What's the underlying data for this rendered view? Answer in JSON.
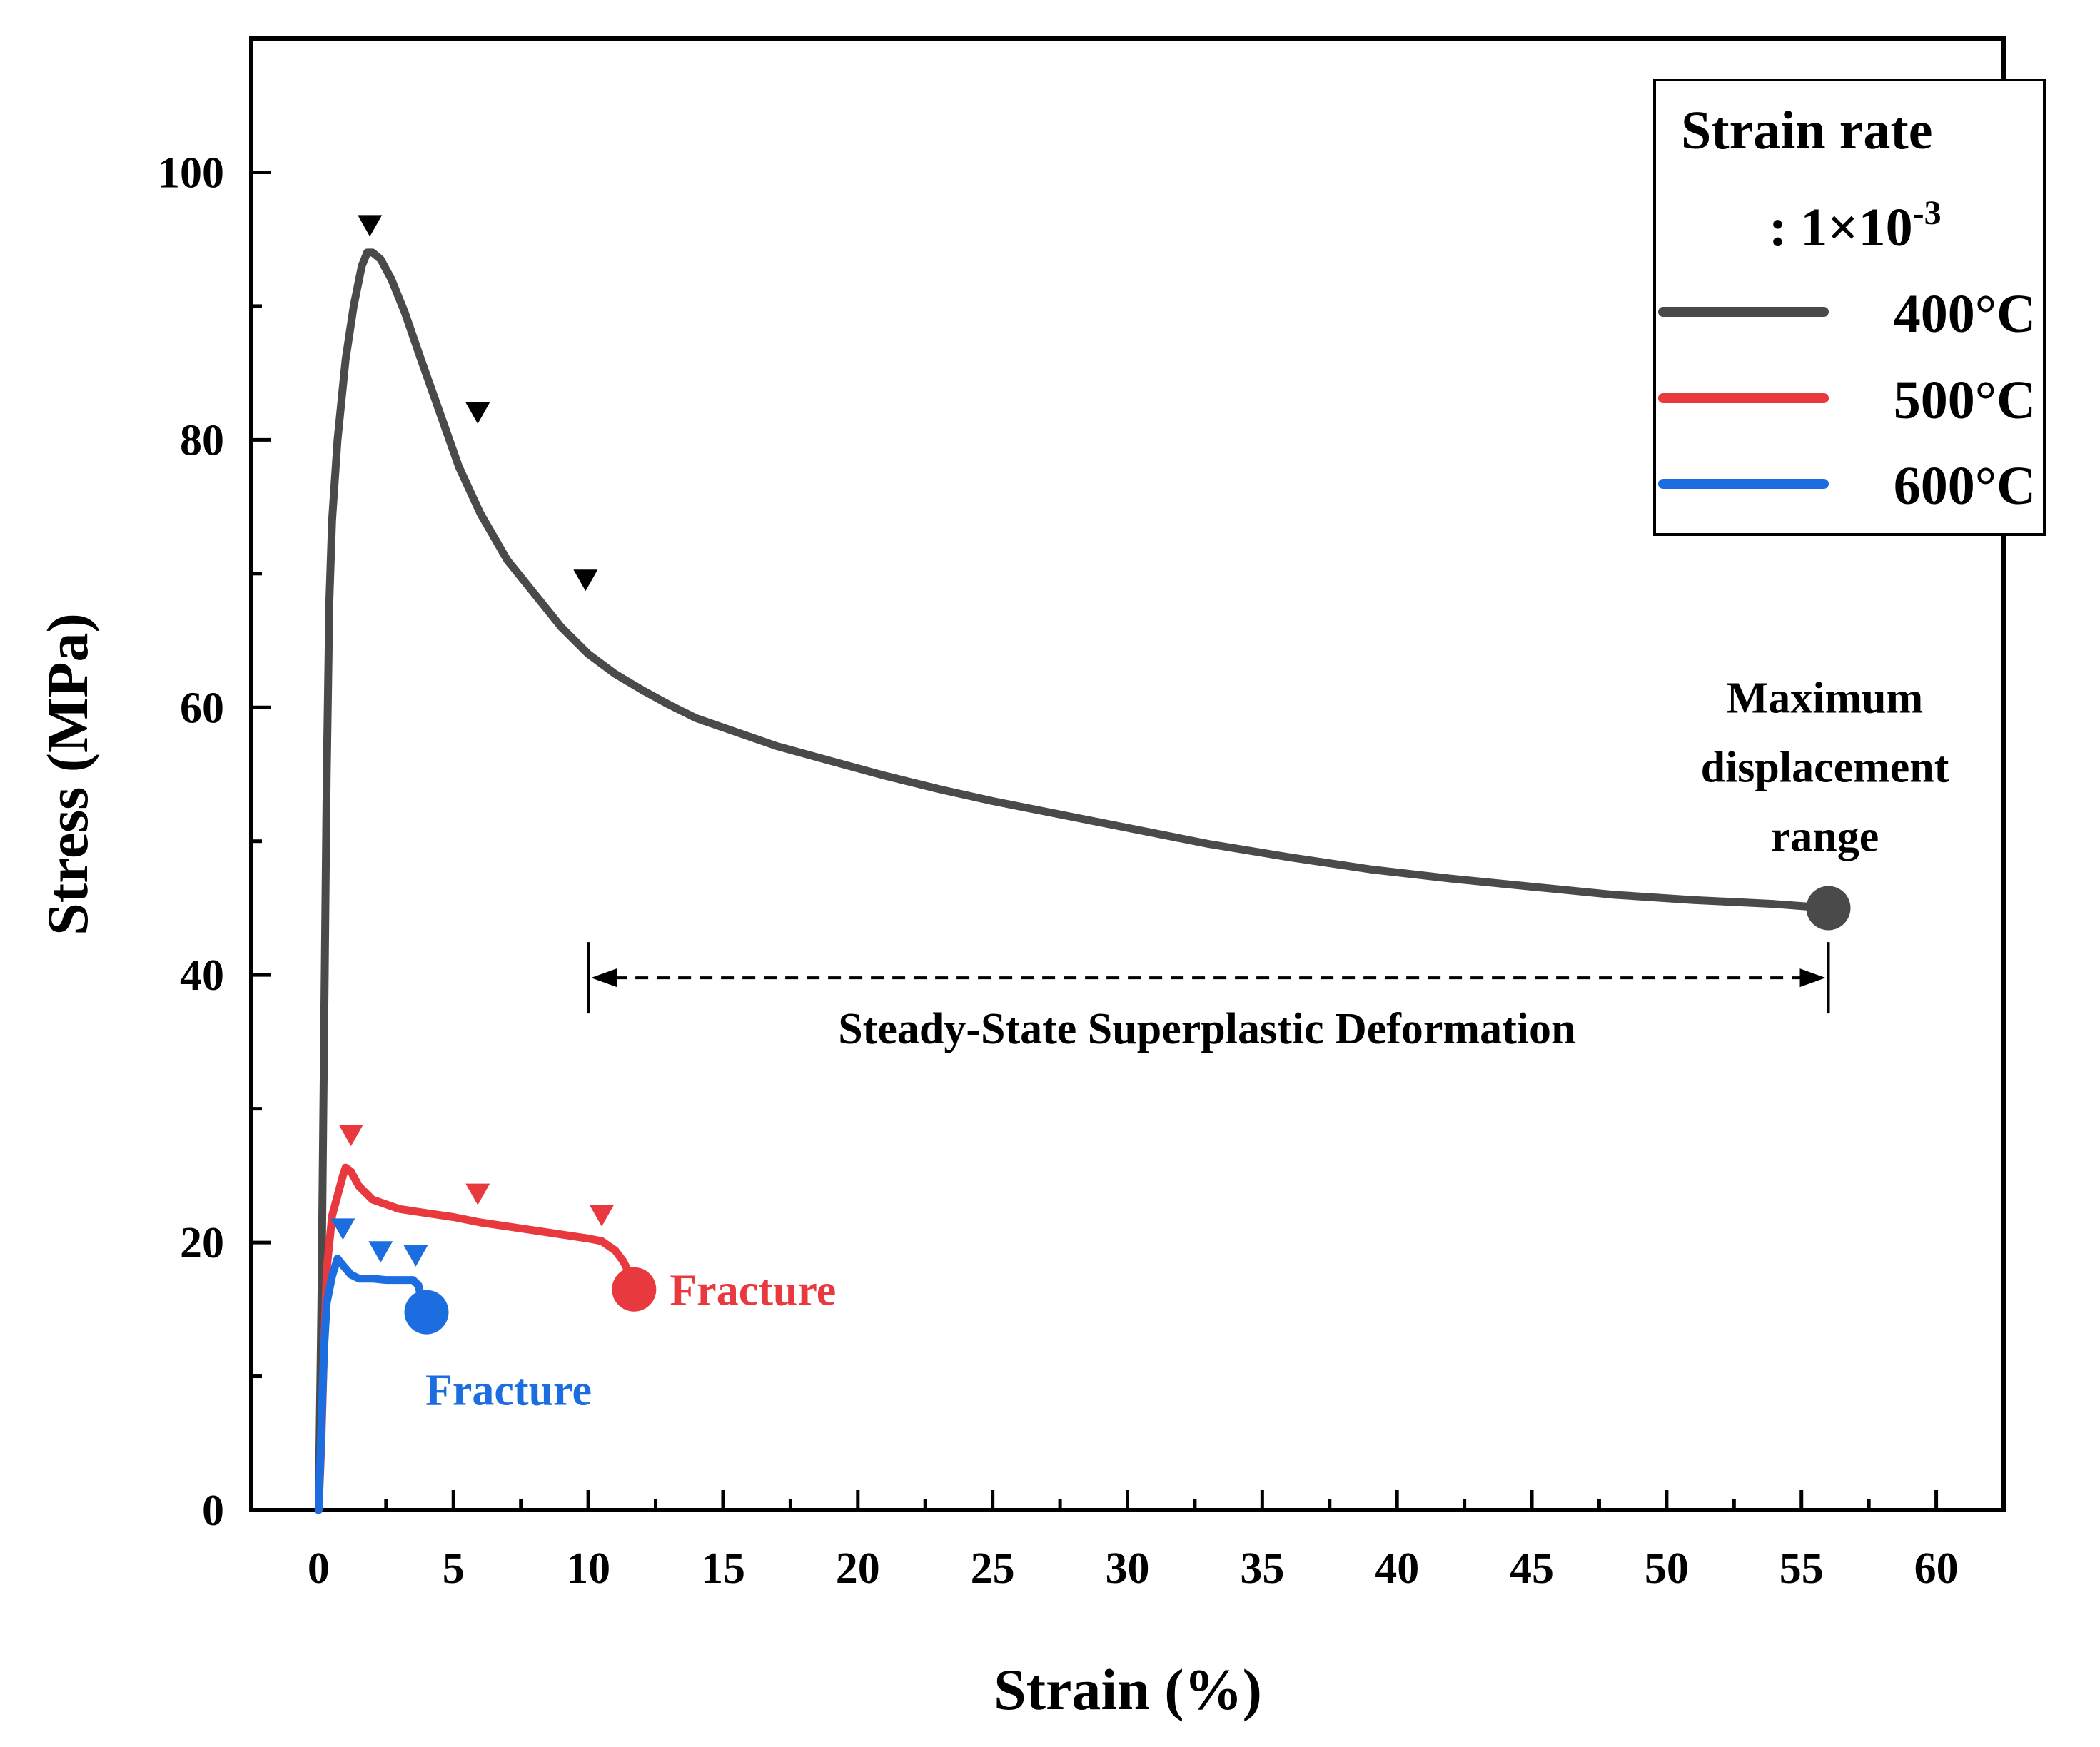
{
  "chart_data": {
    "type": "line",
    "title": "",
    "xlabel": "Strain (%)",
    "ylabel": "Stress (MPa)",
    "xlim": [
      -2.5,
      62.5
    ],
    "ylim": [
      0,
      110
    ],
    "xticks": [
      0,
      5,
      10,
      15,
      20,
      25,
      30,
      35,
      40,
      45,
      50,
      55,
      60
    ],
    "yticks": [
      0,
      20,
      40,
      60,
      80,
      100
    ],
    "x_tick_labels": [
      "0",
      "5",
      "10",
      "15",
      "20",
      "25",
      "30",
      "35",
      "40",
      "45",
      "50",
      "55",
      "60"
    ],
    "y_tick_labels": [
      "0",
      "20",
      "40",
      "60",
      "80",
      "100"
    ],
    "legend": {
      "title_line1": "Strain rate",
      "title_line2_prefix": ": 1×10",
      "title_line2_exponent": "-3",
      "placement": "top-right"
    },
    "series": [
      {
        "name": "400°C",
        "color": "#4a4a4a",
        "x": [
          0,
          0.1,
          0.2,
          0.3,
          0.4,
          0.5,
          0.7,
          1.0,
          1.3,
          1.6,
          1.8,
          2.0,
          2.3,
          2.7,
          3.2,
          3.8,
          4.5,
          5.2,
          6.0,
          7.0,
          8.0,
          9.0,
          10.0,
          11.0,
          12.0,
          13.0,
          14.0,
          15.0,
          17.0,
          19.0,
          21.0,
          23.0,
          25.0,
          27.0,
          30.0,
          33.0,
          36.0,
          39.0,
          42.0,
          45.0,
          48.0,
          51.0,
          54.0,
          56.0
        ],
        "y": [
          0,
          15,
          35,
          55,
          68,
          74,
          80,
          86,
          90,
          93,
          94,
          94,
          93.5,
          92,
          89.5,
          86,
          82,
          78,
          74.5,
          71,
          68.5,
          66,
          64,
          62.5,
          61.3,
          60.2,
          59.2,
          58.5,
          57.1,
          56,
          54.9,
          53.9,
          53,
          52.2,
          51,
          49.8,
          48.8,
          47.9,
          47.2,
          46.6,
          46,
          45.6,
          45.3,
          45
        ]
      },
      {
        "name": "500°C",
        "color": "#e8393e",
        "x": [
          0,
          0.1,
          0.2,
          0.3,
          0.5,
          0.7,
          0.9,
          1.0,
          1.2,
          1.5,
          2.0,
          3.0,
          4.0,
          5.0,
          6.0,
          7.0,
          8.0,
          9.0,
          10.0,
          10.5,
          11.0,
          11.3,
          11.5,
          11.7
        ],
        "y": [
          0,
          5,
          12,
          18,
          22,
          23.5,
          25,
          25.6,
          25.3,
          24.2,
          23.2,
          22.5,
          22.2,
          21.9,
          21.5,
          21.2,
          20.9,
          20.6,
          20.3,
          20.1,
          19.4,
          18.6,
          17.8,
          16.5
        ]
      },
      {
        "name": "600°C",
        "color": "#1c6ee0",
        "x": [
          0,
          0.1,
          0.2,
          0.3,
          0.5,
          0.7,
          0.9,
          1.2,
          1.5,
          2.0,
          2.5,
          3.0,
          3.5,
          3.7,
          3.8,
          3.9,
          4.0
        ],
        "y": [
          0,
          6,
          12,
          15.5,
          17.5,
          18.8,
          18.3,
          17.6,
          17.3,
          17.3,
          17.2,
          17.2,
          17.2,
          16.8,
          15.9,
          15.3,
          14.8
        ]
      }
    ],
    "markers": [
      {
        "series": "400°C",
        "shape": "down-triangle",
        "x": [
          1.9,
          5.9,
          9.9
        ],
        "y": [
          96,
          82,
          69.5
        ]
      },
      {
        "series": "500°C",
        "shape": "down-triangle",
        "x": [
          1.2,
          5.9,
          10.5
        ],
        "y": [
          28,
          23.6,
          22
        ]
      },
      {
        "series": "600°C",
        "shape": "down-triangle",
        "x": [
          0.9,
          2.3,
          3.6
        ],
        "y": [
          21,
          19.3,
          19
        ]
      },
      {
        "series": "400°C",
        "shape": "end-circle",
        "x": [
          56
        ],
        "y": [
          45
        ]
      },
      {
        "series": "500°C",
        "shape": "end-circle",
        "x": [
          11.7
        ],
        "y": [
          16.5
        ]
      },
      {
        "series": "600°C",
        "shape": "end-circle",
        "x": [
          4.0
        ],
        "y": [
          14.8
        ]
      }
    ],
    "annotations": {
      "steady_state": {
        "label": "Steady-State  Superplastic Deformation",
        "x_start": 10,
        "x_end": 56,
        "y": 40
      },
      "max_displacement": {
        "lines": [
          "Maximum",
          "displacement",
          "range"
        ],
        "x": 56,
        "y": 45
      },
      "fracture_500": {
        "label": "Fracture",
        "x": 11.7,
        "y": 16.5,
        "color": "#e8393e"
      },
      "fracture_600": {
        "label": "Fracture",
        "x": 4.0,
        "y": 14.8,
        "color": "#1c6ee0"
      }
    }
  }
}
